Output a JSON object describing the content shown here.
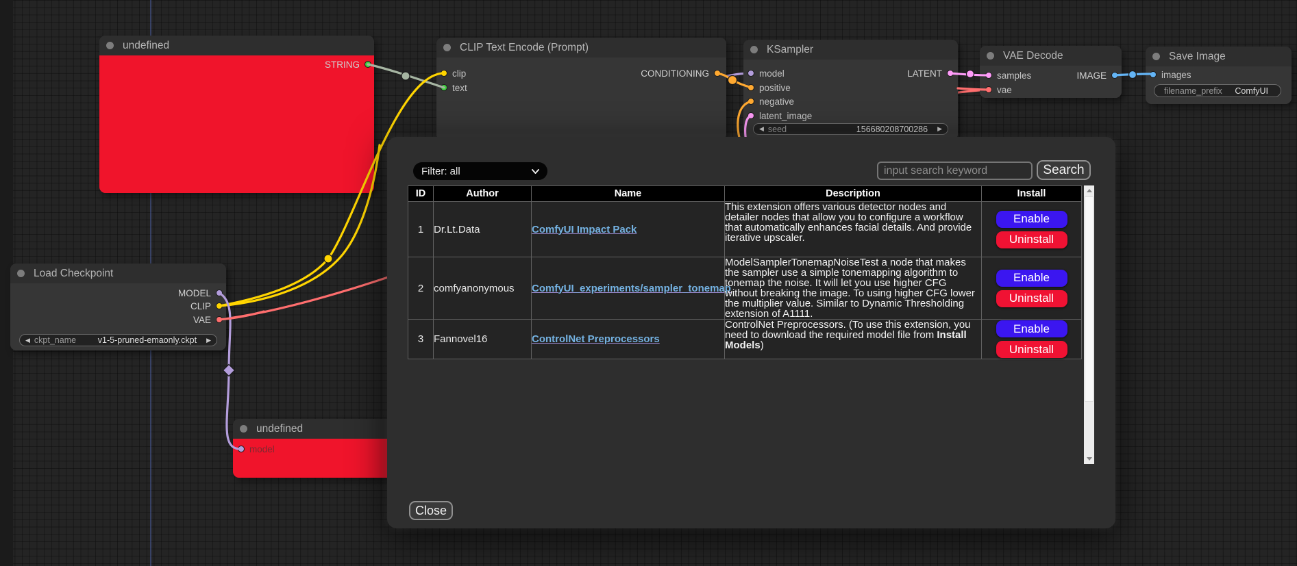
{
  "canvas": {
    "nodes": {
      "undefined_top": {
        "title": "undefined",
        "outputs": [
          "STRING"
        ]
      },
      "clip_text_encode": {
        "title": "CLIP Text Encode (Prompt)",
        "inputs": [
          "clip",
          "text"
        ],
        "outputs": [
          "CONDITIONING"
        ]
      },
      "ksampler": {
        "title": "KSampler",
        "inputs": [
          "model",
          "positive",
          "negative",
          "latent_image"
        ],
        "outputs": [
          "LATENT"
        ],
        "widgets": [
          {
            "name": "seed",
            "value": "156680208700286"
          }
        ]
      },
      "vae_decode": {
        "title": "VAE Decode",
        "inputs": [
          "samples",
          "vae"
        ],
        "outputs": [
          "IMAGE"
        ]
      },
      "save_image": {
        "title": "Save Image",
        "inputs": [
          "images"
        ],
        "widgets": [
          {
            "name": "filename_prefix",
            "value": "ComfyUI"
          }
        ]
      },
      "load_checkpoint": {
        "title": "Load Checkpoint",
        "outputs": [
          "MODEL",
          "CLIP",
          "VAE"
        ],
        "widgets": [
          {
            "name": "ckpt_name",
            "value": "v1-5-pruned-emaonly.ckpt"
          }
        ]
      },
      "undefined_bottom": {
        "title": "undefined",
        "inputs": [
          "model"
        ]
      }
    }
  },
  "dialog": {
    "filter_label": "Filter: all",
    "search_placeholder": "input search keyword",
    "search_button": "Search",
    "close_button": "Close",
    "table": {
      "headers": [
        "ID",
        "Author",
        "Name",
        "Description",
        "Install"
      ],
      "rows": [
        {
          "id": "1",
          "author": "Dr.Lt.Data",
          "name": "ComfyUI Impact Pack",
          "description": [
            {
              "text": "This extension offers various detector nodes and detailer nodes that allow you to configure a workflow that automatically enhances facial details. And provide iterative upscaler.",
              "bold": false
            }
          ],
          "buttons": [
            "Enable",
            "Uninstall"
          ]
        },
        {
          "id": "2",
          "author": "comfyanonymous",
          "name": "ComfyUI_experiments/sampler_tonemap",
          "description": [
            {
              "text": "ModelSamplerTonemapNoiseTest a node that makes the sampler use a simple tonemapping algorithm to tonemap the noise. It will let you use higher CFG without breaking the image. To using higher CFG lower the multiplier value. Similar to Dynamic Thresholding extension of A1111.",
              "bold": false
            }
          ],
          "buttons": [
            "Enable",
            "Uninstall"
          ]
        },
        {
          "id": "3",
          "author": "Fannovel16",
          "name": "ControlNet Preprocessors",
          "description": [
            {
              "text": "ControlNet Preprocessors. (To use this extension, you need to download the required model file from ",
              "bold": false
            },
            {
              "text": "Install Models",
              "bold": true
            },
            {
              "text": ")",
              "bold": false
            }
          ],
          "buttons": [
            "Enable",
            "Uninstall"
          ]
        }
      ]
    }
  },
  "colors": {
    "model": "#b39ddb",
    "clip": "#ffd500",
    "vae": "#ff6e6e",
    "conditioning": "#ffa931",
    "latent": "#ff9cf9",
    "image": "#64b5f6",
    "string": "#3fcf3f",
    "string_wire": "#a6b5a2",
    "enable_button": "#3b16f0",
    "uninstall_button": "#f01233",
    "link": "#74b2e2",
    "error_node": "#f0142b"
  }
}
